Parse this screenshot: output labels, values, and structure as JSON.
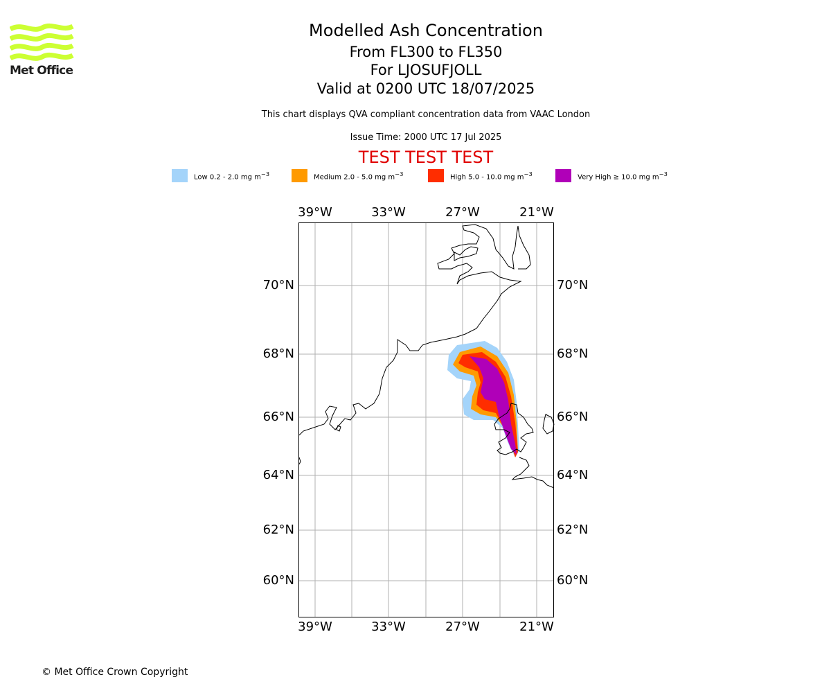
{
  "logo": {
    "name": "Met Office",
    "wave_color": "#ccff33"
  },
  "title": {
    "main": "Modelled Ash Concentration",
    "levels": "From FL300 to FL350",
    "volcano": "For LJOSUFJOLL",
    "valid": "Valid at 0200 UTC 18/07/2025"
  },
  "disclaimer": "This chart displays QVA compliant concentration data from VAAC London",
  "issue_time": "Issue Time: 2000 UTC 17 Jul 2025",
  "test_banner": {
    "text": "TEST TEST TEST",
    "color": "#e00000"
  },
  "legend": [
    {
      "level": "Low",
      "range": "0.2 - 2.0 mg m",
      "color": "#a4d4fa"
    },
    {
      "level": "Medium",
      "range": "2.0 - 5.0 mg m",
      "color": "#ff9a00"
    },
    {
      "level": "High",
      "range": "5.0 - 10.0 mg m",
      "color": "#ff2d00"
    },
    {
      "level": "Very High",
      "range": "≥ 10.0 mg m",
      "color": "#b000b8"
    }
  ],
  "map": {
    "lon_ticks": [
      "39°W",
      "33°W",
      "27°W",
      "21°W"
    ],
    "lat_ticks": [
      "70°N",
      "68°N",
      "66°N",
      "64°N",
      "62°N",
      "60°N"
    ],
    "grid_color": "#b0b0b0"
  },
  "copyright": "© Met Office Crown Copyright"
}
